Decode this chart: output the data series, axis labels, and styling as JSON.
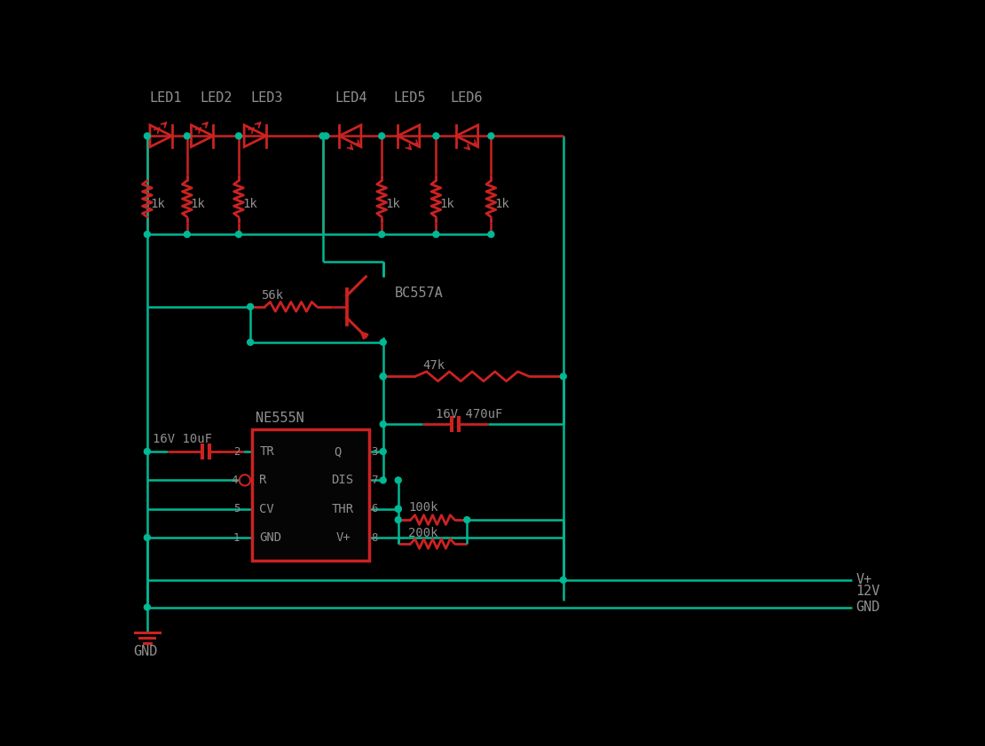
{
  "bg_color": "#000000",
  "wire_color": "#00b894",
  "comp_color": "#cc2222",
  "text_color": "#909090",
  "ic_label": "NE555N",
  "transistor_label": "BC557A",
  "leds": [
    "LED1",
    "LED2",
    "LED3",
    "LED4",
    "LED5",
    "LED6"
  ],
  "res_1k": "1k",
  "res_56k": "56k",
  "res_47k": "47k",
  "res_100k": "100k",
  "res_200k": "200k",
  "cap_10uf": "16V 10uF",
  "cap_470uf": "16V 470uF",
  "vplus_label": "V+",
  "v12_label": "12V",
  "gnd_label": "GND",
  "pin_labels_left": [
    "TR",
    "R",
    "CV",
    "GND"
  ],
  "pin_labels_right": [
    "Q",
    "DIS",
    "THR",
    "V+"
  ],
  "pin_nums_left": [
    "2",
    "4",
    "5",
    "1"
  ],
  "pin_nums_right": [
    "3",
    "7",
    "6",
    "8"
  ]
}
